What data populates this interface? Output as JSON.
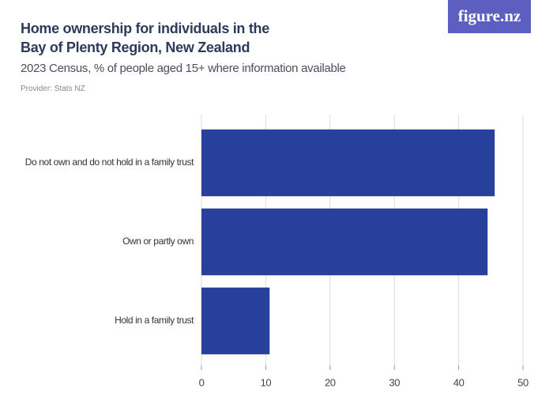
{
  "chart_data": {
    "type": "bar",
    "orientation": "horizontal",
    "title": "Home ownership for individuals in the Bay of Plenty Region, New Zealand",
    "subtitle": "2023 Census, % of people aged 15+ where information available",
    "source": "Provider: Stats NZ",
    "logo": "figure.nz",
    "categories": [
      "Do not own and do not hold in a family trust",
      "Own or partly own",
      "Hold in a family trust"
    ],
    "values": [
      45.6,
      44.5,
      10.6
    ],
    "color": "#27409b",
    "xlim": [
      0,
      50
    ],
    "xticks": [
      0,
      10,
      20,
      30,
      40,
      50
    ],
    "grid": true
  }
}
